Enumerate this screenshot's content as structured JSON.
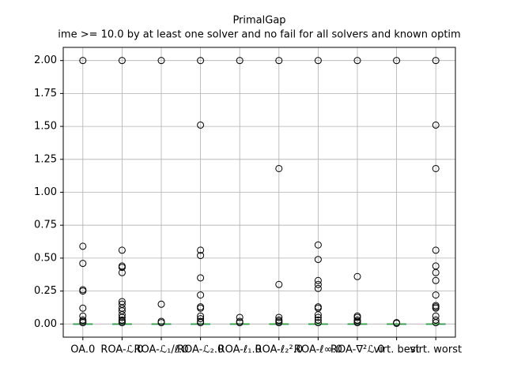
{
  "chart_data": {
    "type": "box",
    "title": "PrimalGap",
    "subtitle": "ime >= 10.0 by at least one solver and no fail for all solvers and known optim",
    "categories": [
      "OA.0",
      "ROA-ℒ.0",
      "ROA-ℒ₁/ℓ.0",
      "ROA-ℒ₂.0",
      "ROA-ℓ₁.0",
      "ROA-ℓ₂².0",
      "ROA-ℓ∞.0",
      "ROA-∇²ℒ.0",
      "virt. best",
      "virt. worst"
    ],
    "boxes": [
      {
        "whislo": 0,
        "q1": 0,
        "median": 0,
        "q3": 0,
        "whishi": 0,
        "fliers": [
          2.0,
          0.59,
          0.46,
          0.26,
          0.25,
          0.12,
          0.06,
          0.03,
          0.02,
          0.01
        ]
      },
      {
        "whislo": 0,
        "q1": 0,
        "median": 0,
        "q3": 0,
        "whishi": 0,
        "fliers": [
          2.0,
          0.56,
          0.44,
          0.43,
          0.39,
          0.17,
          0.15,
          0.12,
          0.1,
          0.07,
          0.05,
          0.03,
          0.02,
          0.01
        ]
      },
      {
        "whislo": 0,
        "q1": 0,
        "median": 0,
        "q3": 0,
        "whishi": 0,
        "fliers": [
          2.0,
          0.15,
          0.02,
          0.01
        ]
      },
      {
        "whislo": 0,
        "q1": 0,
        "median": 0,
        "q3": 0,
        "whishi": 0,
        "fliers": [
          2.0,
          1.51,
          0.56,
          0.52,
          0.35,
          0.22,
          0.13,
          0.12,
          0.06,
          0.04,
          0.02,
          0.01
        ]
      },
      {
        "whislo": 0,
        "q1": 0,
        "median": 0,
        "q3": 0,
        "whishi": 0,
        "fliers": [
          2.0,
          0.05,
          0.02,
          0.01
        ]
      },
      {
        "whislo": 0,
        "q1": 0,
        "median": 0,
        "q3": 0,
        "whishi": 0,
        "fliers": [
          2.0,
          1.18,
          0.3,
          0.05,
          0.03,
          0.02,
          0.01
        ]
      },
      {
        "whislo": 0,
        "q1": 0,
        "median": 0,
        "q3": 0,
        "whishi": 0,
        "fliers": [
          2.0,
          0.6,
          0.49,
          0.33,
          0.3,
          0.27,
          0.13,
          0.12,
          0.07,
          0.05,
          0.03,
          0.01
        ]
      },
      {
        "whislo": 0,
        "q1": 0,
        "median": 0,
        "q3": 0,
        "whishi": 0,
        "fliers": [
          2.0,
          0.36,
          0.06,
          0.05,
          0.03,
          0.02,
          0.01
        ]
      },
      {
        "whislo": 0,
        "q1": 0,
        "median": 0,
        "q3": 0,
        "whishi": 0,
        "fliers": [
          2.0,
          0.01,
          0.005
        ]
      },
      {
        "whislo": 0,
        "q1": 0,
        "median": 0,
        "q3": 0,
        "whishi": 0,
        "fliers": [
          2.0,
          1.51,
          1.18,
          0.56,
          0.44,
          0.39,
          0.33,
          0.22,
          0.14,
          0.13,
          0.12,
          0.06,
          0.03,
          0.01
        ]
      }
    ],
    "box_color": "#1f77b4",
    "median_color": "#2ca02c",
    "ylim": [
      -0.1,
      2.1
    ],
    "yticks": [
      {
        "value": 0,
        "label": "0.00"
      },
      {
        "value": 0.25,
        "label": "0.25"
      },
      {
        "value": 0.5,
        "label": "0.50"
      },
      {
        "value": 0.75,
        "label": "0.75"
      },
      {
        "value": 1,
        "label": "1.00"
      },
      {
        "value": 1.25,
        "label": "1.25"
      },
      {
        "value": 1.5,
        "label": "1.50"
      },
      {
        "value": 1.75,
        "label": "1.75"
      },
      {
        "value": 2,
        "label": "2.00"
      }
    ],
    "grid": true
  }
}
